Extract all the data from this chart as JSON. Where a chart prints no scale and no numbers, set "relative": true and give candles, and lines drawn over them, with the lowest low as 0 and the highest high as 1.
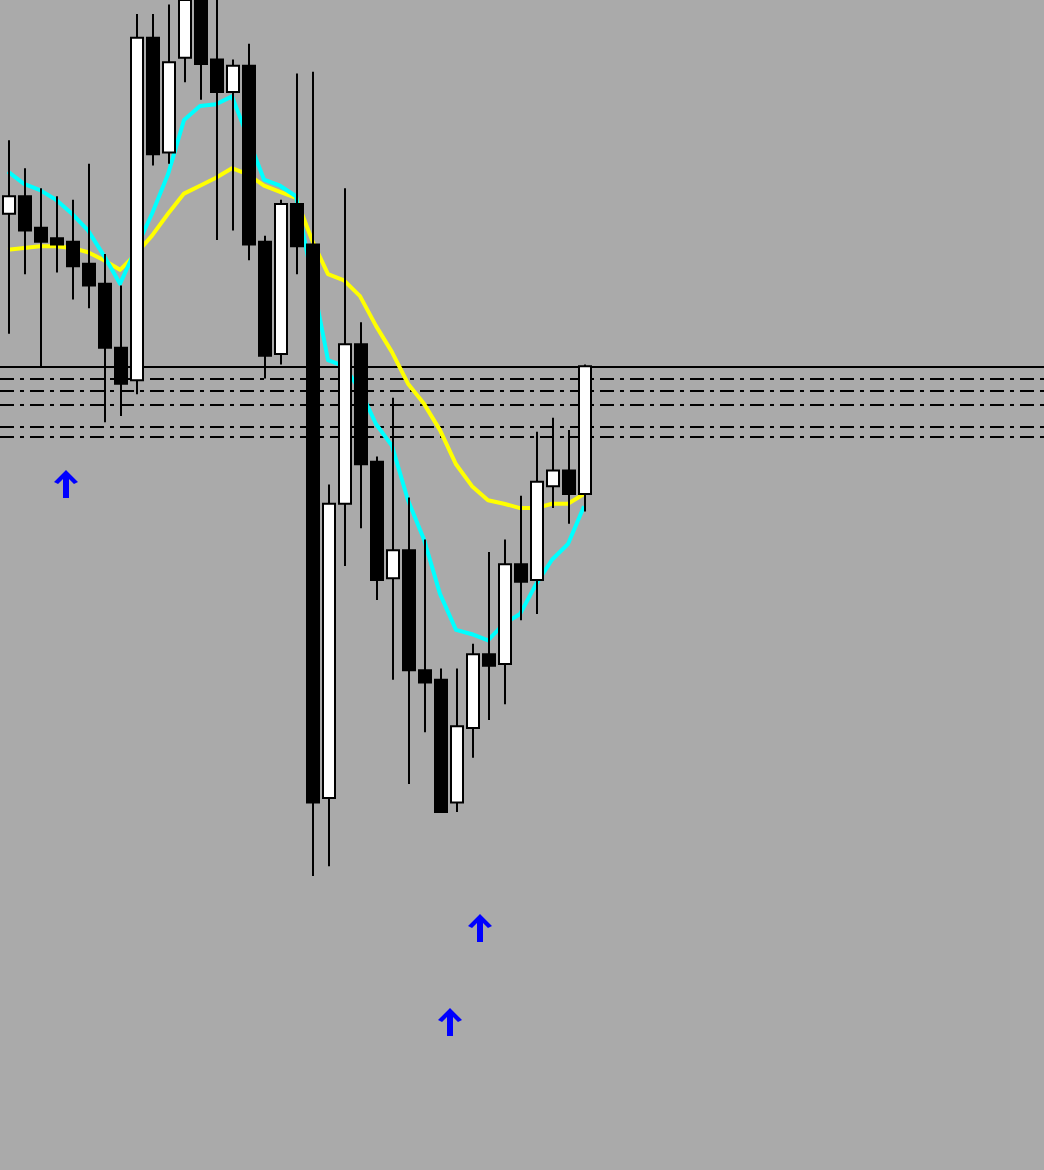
{
  "chart_data": {
    "type": "candlestick",
    "relative": true,
    "grid": false,
    "marker": "none",
    "categories": [
      null,
      null,
      null,
      null,
      null,
      null,
      null,
      null,
      null,
      null,
      null,
      null,
      null,
      null,
      null,
      null,
      null,
      null,
      null,
      null,
      null,
      null,
      null,
      null,
      null,
      null,
      null,
      null,
      null,
      null,
      null,
      null,
      null,
      null,
      null,
      null,
      null
    ],
    "ohlc": [
      [
        0.756,
        0.84,
        0.619,
        0.776
      ],
      [
        0.776,
        0.808,
        0.687,
        0.737
      ],
      [
        0.74,
        0.785,
        0.582,
        0.724
      ],
      [
        0.728,
        0.776,
        0.689,
        0.721
      ],
      [
        0.724,
        0.772,
        0.658,
        0.696
      ],
      [
        0.699,
        0.813,
        0.648,
        0.674
      ],
      [
        0.676,
        0.71,
        0.518,
        0.603
      ],
      [
        0.603,
        0.674,
        0.525,
        0.562
      ],
      [
        0.566,
        0.984,
        0.55,
        0.957
      ],
      [
        0.957,
        0.984,
        0.811,
        0.824
      ],
      [
        0.826,
        0.995,
        0.813,
        0.929
      ],
      [
        0.934,
        1,
        0.906,
        1
      ],
      [
        1,
        1,
        0.886,
        0.927
      ],
      [
        0.932,
        1,
        0.726,
        0.895
      ],
      [
        0.895,
        0.932,
        0.737,
        0.925
      ],
      [
        0.925,
        0.95,
        0.703,
        0.721
      ],
      [
        0.724,
        0.731,
        0.568,
        0.594
      ],
      [
        0.596,
        0.772,
        0.584,
        0.767
      ],
      [
        0.767,
        0.916,
        0.687,
        0.719
      ],
      [
        0.721,
        0.918,
        0,
        0.084
      ],
      [
        0.089,
        0.447,
        0.011,
        0.425
      ],
      [
        0.425,
        0.785,
        0.354,
        0.607
      ],
      [
        0.607,
        0.632,
        0.397,
        0.47
      ],
      [
        0.473,
        0.479,
        0.315,
        0.338
      ],
      [
        0.34,
        0.546,
        0.224,
        0.372
      ],
      [
        0.372,
        0.432,
        0.105,
        0.235
      ],
      [
        0.235,
        0.384,
        0.164,
        0.221
      ],
      [
        0.224,
        0.237,
        0.073,
        0.073
      ],
      [
        0.084,
        0.237,
        0.073,
        0.171
      ],
      [
        0.169,
        0.265,
        0.135,
        0.253
      ],
      [
        0.253,
        0.37,
        0.178,
        0.24
      ],
      [
        0.242,
        0.384,
        0.196,
        0.356
      ],
      [
        0.356,
        0.434,
        0.292,
        0.336
      ],
      [
        0.338,
        0.507,
        0.299,
        0.45
      ],
      [
        0.445,
        0.523,
        0.42,
        0.463
      ],
      [
        0.463,
        0.509,
        0.402,
        0.436
      ],
      [
        0.436,
        0.584,
        0.416,
        0.582
      ]
    ],
    "series": [
      {
        "type": "line",
        "color": "#00ffff",
        "values": [
          0.804,
          0.79,
          0.783,
          0.772,
          0.756,
          0.737,
          0.708,
          0.676,
          null,
          0.756,
          0.801,
          0.863,
          0.879,
          0.881,
          0.89,
          null,
          0.795,
          0.788,
          0.776,
          null,
          0.589,
          0.582,
          0.555,
          0.516,
          0.491,
          0.429,
          0.384,
          0.322,
          0.281,
          0.276,
          0.269,
          0.288,
          0.299,
          0.333,
          0.361,
          0.379,
          0.422
        ]
      },
      {
        "type": "line",
        "color": "#ffff00",
        "values": [
          0.715,
          0.717,
          0.719,
          0.719,
          0.717,
          0.712,
          0.703,
          0.692,
          0.71,
          0.731,
          0.756,
          0.779,
          0.788,
          0.797,
          0.808,
          0.801,
          0.788,
          0.781,
          0.774,
          0.726,
          0.687,
          0.68,
          0.662,
          0.628,
          0.598,
          0.562,
          0.539,
          0.509,
          0.47,
          0.445,
          0.429,
          0.425,
          0.42,
          0.42,
          0.425,
          0.425,
          0.436
        ]
      }
    ],
    "ref_lines": [
      {
        "axis": "y",
        "value": 0.582,
        "color": "#000000",
        "line_style": "solid"
      },
      {
        "axis": "y",
        "value": 0.568,
        "color": "#000000",
        "line_style": "dashed"
      },
      {
        "axis": "y",
        "value": 0.555,
        "color": "#000000",
        "line_style": "dashed"
      },
      {
        "axis": "y",
        "value": 0.539,
        "color": "#000000",
        "line_style": "dashed"
      },
      {
        "axis": "y",
        "value": 0.514,
        "color": "#000000",
        "line_style": "dashed"
      },
      {
        "axis": "y",
        "value": 0.502,
        "color": "#000000",
        "line_style": "dashed"
      }
    ]
  }
}
